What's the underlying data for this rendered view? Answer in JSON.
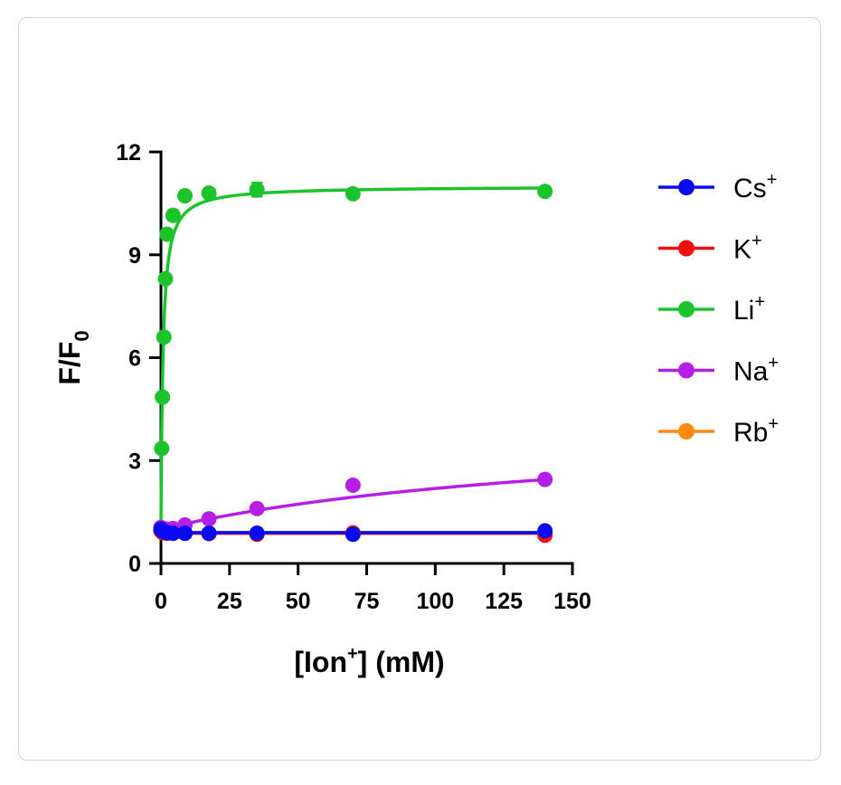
{
  "chart_data": {
    "type": "scatter",
    "xlabel": "[Ion+] (mM)",
    "xlabel_parts": {
      "pre": "[Ion",
      "sup": "+",
      "post": "] (mM)"
    },
    "ylabel": "F/F0",
    "ylabel_parts": {
      "pre": "F/F",
      "sub": "0"
    },
    "xlim": [
      0,
      150
    ],
    "ylim": [
      0,
      12
    ],
    "xticks": [
      "0",
      "25",
      "50",
      "75",
      "100",
      "125",
      "150"
    ],
    "yticks": [
      "0",
      "3",
      "6",
      "9",
      "12"
    ],
    "grid": false,
    "legend_position": "right",
    "series": [
      {
        "name": "Cs+",
        "base": "Cs",
        "sup": "+",
        "color": "#0a0af0",
        "x": [
          0,
          0.55,
          1.1,
          2.2,
          4.4,
          8.75,
          17.5,
          35,
          70,
          140
        ],
        "y": [
          1.0,
          0.95,
          0.92,
          0.9,
          0.88,
          0.88,
          0.88,
          0.88,
          0.85,
          0.95
        ],
        "fit": [
          [
            0,
            0.9
          ],
          [
            140,
            0.9
          ]
        ]
      },
      {
        "name": "K+",
        "base": "K",
        "sup": "+",
        "color": "#f01010",
        "x": [
          0,
          0.55,
          1.1,
          2.2,
          4.4,
          8.75,
          17.5,
          35,
          70,
          140
        ],
        "y": [
          0.95,
          0.9,
          0.9,
          0.88,
          0.88,
          0.88,
          0.87,
          0.85,
          0.88,
          0.82
        ],
        "fit": [
          [
            0,
            0.88
          ],
          [
            140,
            0.88
          ]
        ]
      },
      {
        "name": "Li+",
        "base": "Li",
        "sup": "+",
        "color": "#1cc42c",
        "x": [
          0.27,
          0.55,
          1.1,
          1.65,
          2.2,
          4.4,
          8.75,
          17.5,
          35,
          70,
          140
        ],
        "y": [
          3.35,
          4.85,
          6.6,
          8.3,
          9.6,
          10.15,
          10.72,
          10.8,
          10.9,
          10.78,
          10.85
        ],
        "yerr": [
          0,
          0,
          0,
          0,
          0.1,
          0.15,
          0.1,
          0.1,
          0.2,
          0.1,
          0.1
        ],
        "fit_model": {
          "type": "hyperbolic",
          "y0": 1.0,
          "ymax": 10.0,
          "kd": 0.75
        }
      },
      {
        "name": "Na+",
        "base": "Na",
        "sup": "+",
        "color": "#b41ee6",
        "x": [
          0,
          1.1,
          2.2,
          4.4,
          8.75,
          17.5,
          35,
          70,
          140
        ],
        "y": [
          1.05,
          1.0,
          1.0,
          1.02,
          1.12,
          1.3,
          1.6,
          2.28,
          2.45
        ],
        "fit_model": {
          "type": "hyperbolic",
          "y0": 1.0,
          "ymax": 3.2,
          "kd": 170
        }
      },
      {
        "name": "Rb+",
        "base": "Rb",
        "sup": "+",
        "color": "#ff8a10",
        "x": [
          0,
          0.55,
          1.1,
          2.2,
          4.4,
          8.75,
          17.5,
          35,
          70,
          140
        ],
        "y": [
          0.95,
          0.9,
          0.9,
          0.88,
          0.88,
          0.88,
          0.88,
          0.88,
          0.9,
          0.88
        ],
        "fit": [
          [
            0,
            0.88
          ],
          [
            140,
            0.88
          ]
        ]
      }
    ],
    "draw_order": [
      "Rb+",
      "K+",
      "Na+",
      "Li+",
      "Cs+"
    ]
  }
}
